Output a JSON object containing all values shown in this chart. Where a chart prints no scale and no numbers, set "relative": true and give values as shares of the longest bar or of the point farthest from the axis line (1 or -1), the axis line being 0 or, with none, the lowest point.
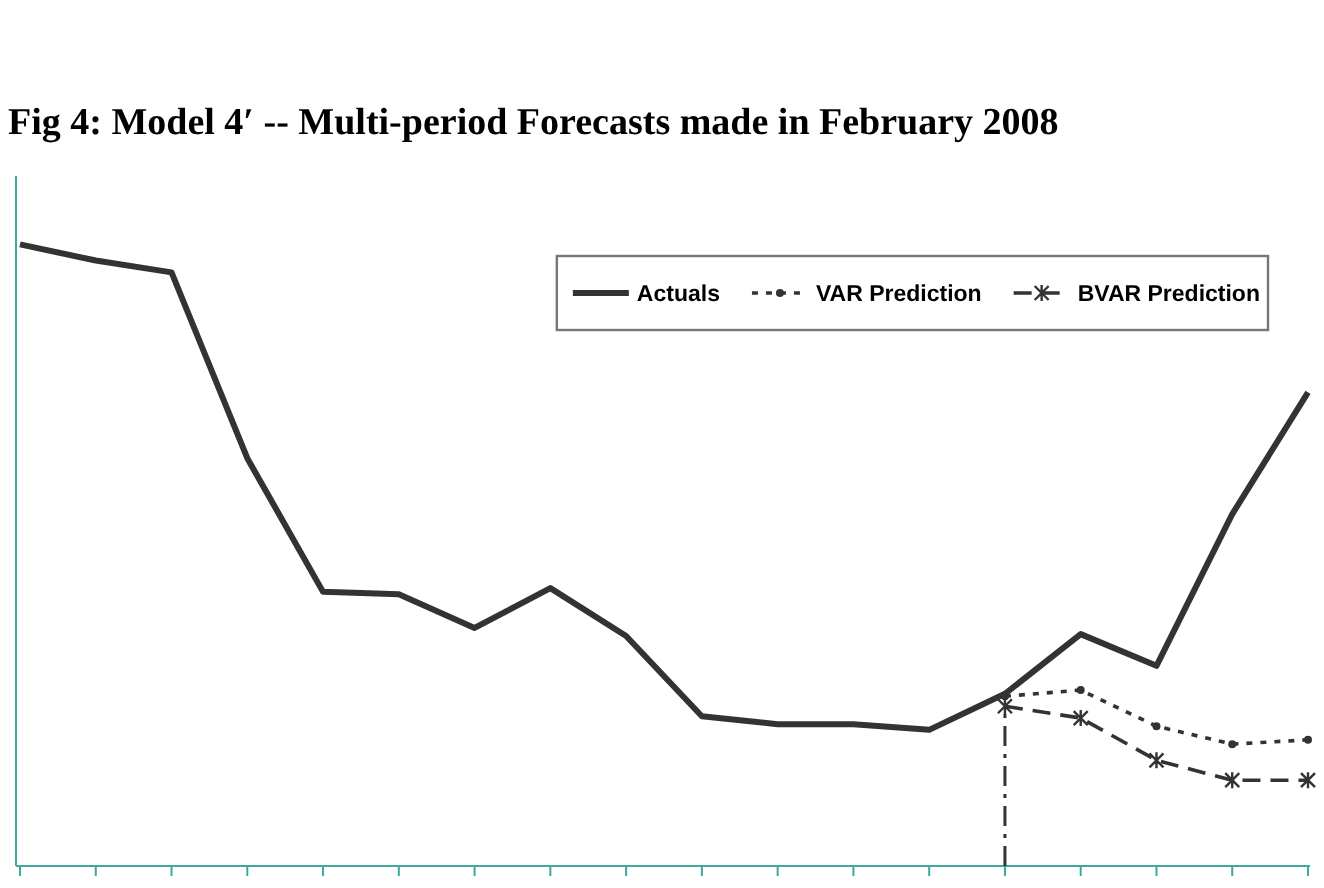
{
  "chart_data": {
    "type": "line",
    "title": "Fig 4: Model 4′ -- Multi-period Forecasts made in February 2008",
    "relative": true,
    "categories": [
      null,
      null,
      null,
      null,
      null,
      null,
      null,
      null,
      null,
      null,
      null,
      null,
      null,
      null,
      null,
      null,
      null,
      null
    ],
    "series": [
      {
        "name": "Actuals",
        "color": "#333333",
        "line_style": "solid",
        "marker": "none",
        "values": [
          1,
          0.974,
          0.955,
          0.656,
          0.441,
          0.437,
          0.383,
          0.447,
          0.37,
          0.241,
          0.228,
          0.228,
          0.219,
          0.277,
          0.373,
          0.322,
          0.566,
          0.762
        ]
      },
      {
        "name": "VAR Prediction",
        "color": "#333333",
        "line_style": "dotted",
        "marker": "circle",
        "values": [
          null,
          null,
          null,
          null,
          null,
          null,
          null,
          null,
          null,
          null,
          null,
          null,
          null,
          0.273,
          0.283,
          0.225,
          0.196,
          0.203
        ]
      },
      {
        "name": "BVAR Prediction",
        "color": "#333333",
        "line_style": "dashed",
        "marker": "cross",
        "values": [
          null,
          null,
          null,
          null,
          null,
          null,
          null,
          null,
          null,
          null,
          null,
          null,
          null,
          0.257,
          0.238,
          0.17,
          0.138,
          0.138
        ]
      }
    ],
    "legend": "top right"
  }
}
